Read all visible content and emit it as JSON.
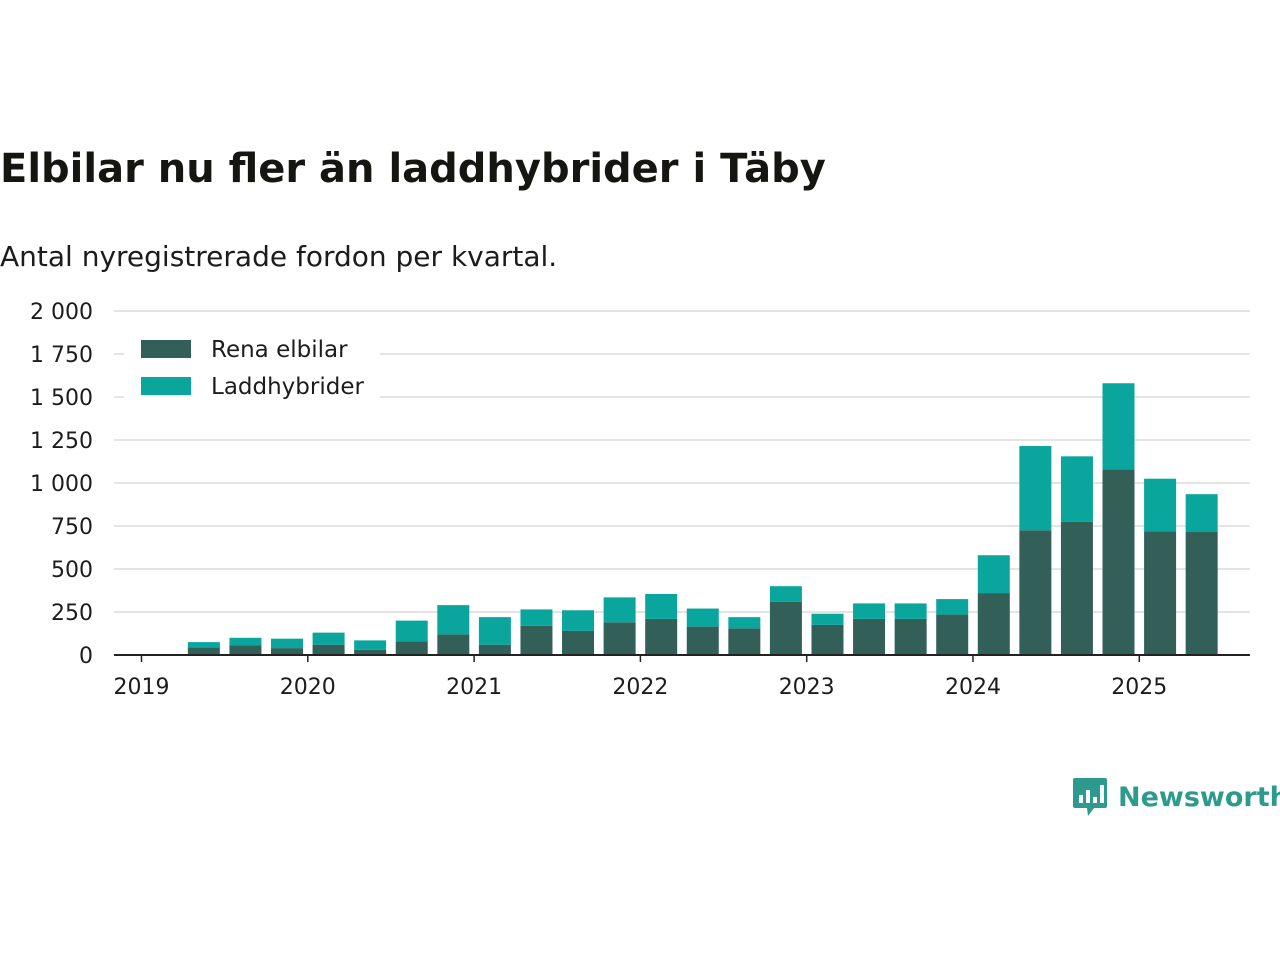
{
  "chart_data": {
    "type": "bar",
    "stacked": true,
    "title": "Elbilar nu fler än laddhybrider i Täby",
    "subtitle": "Antal nyregistrerade fordon per kvartal.",
    "x_tick_labels": [
      "2019",
      "2020",
      "2021",
      "2022",
      "2023",
      "2024",
      "2025"
    ],
    "y_tick_labels": [
      "0",
      "250",
      "500",
      "750",
      "1 000",
      "1 250",
      "1 500",
      "1 750",
      "2 000"
    ],
    "ylim": [
      0,
      2000
    ],
    "grid": true,
    "legend_position": "top-left",
    "categories": [
      "2019 Q2",
      "2019 Q3",
      "2019 Q4",
      "2020 Q1",
      "2020 Q2",
      "2020 Q3",
      "2020 Q4",
      "2021 Q1",
      "2021 Q2",
      "2021 Q3",
      "2021 Q4",
      "2022 Q1",
      "2022 Q2",
      "2022 Q3",
      "2022 Q4",
      "2023 Q1",
      "2023 Q2",
      "2023 Q3",
      "2023 Q4",
      "2024 Q1",
      "2024 Q2",
      "2024 Q3",
      "2024 Q4",
      "2025 Q1",
      "2025 Q2"
    ],
    "series": [
      {
        "name": "Rena elbilar",
        "color": "#335f59",
        "values": [
          45,
          55,
          40,
          60,
          30,
          80,
          120,
          60,
          170,
          140,
          190,
          210,
          165,
          155,
          310,
          175,
          210,
          210,
          235,
          360,
          725,
          775,
          1080,
          720,
          715
        ]
      },
      {
        "name": "Laddhybrider",
        "color": "#0aa59c",
        "values": [
          30,
          45,
          55,
          70,
          55,
          120,
          170,
          160,
          95,
          120,
          145,
          145,
          105,
          65,
          90,
          65,
          90,
          90,
          90,
          220,
          490,
          380,
          500,
          305,
          220
        ]
      }
    ]
  },
  "brand": {
    "name": "Newsworthy",
    "color": "#2e9a8d",
    "icon": "newsworthy-logo-icon"
  },
  "colors": {
    "axis": "#222222",
    "grid": "#dcdcdc",
    "text": "#1c1c1c",
    "title": "#151511"
  }
}
